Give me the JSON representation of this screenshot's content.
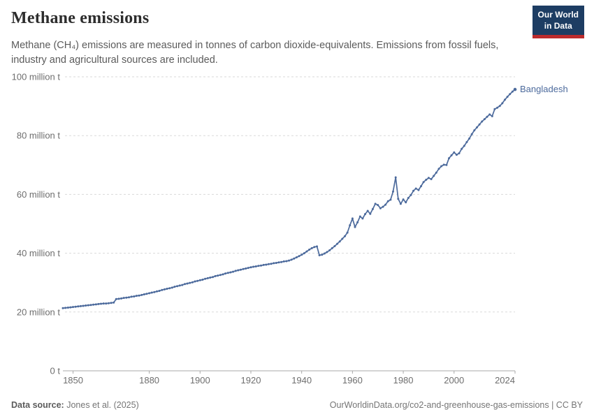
{
  "header": {
    "title": "Methane emissions",
    "subtitle": "Methane (CH₄) emissions are measured in tonnes of carbon dioxide-equivalents. Emissions from fossil fuels, industry and agricultural sources are included."
  },
  "logo": {
    "line1": "Our World",
    "line2": "in Data",
    "bg_color": "#1d3d63",
    "accent_color": "#bc2b2d"
  },
  "chart_data": {
    "type": "line",
    "title": "Methane emissions",
    "entity_label": "Bangladesh",
    "unit": "t",
    "line_color": "#4c6a9c",
    "grid": "horizontal-dashed",
    "legend_position": "end-of-line",
    "xlim": [
      1846,
      2024
    ],
    "ylim": [
      0,
      100
    ],
    "xticks": [
      1850,
      1880,
      1900,
      1920,
      1940,
      1960,
      1980,
      2000,
      2024
    ],
    "yticks": [
      {
        "value": 0,
        "label": "0 t"
      },
      {
        "value": 20,
        "label": "20 million t"
      },
      {
        "value": 40,
        "label": "40 million t"
      },
      {
        "value": 60,
        "label": "60 million t"
      },
      {
        "value": 80,
        "label": "80 million t"
      },
      {
        "value": 100,
        "label": "100 million t"
      }
    ],
    "years": [
      1846,
      1847,
      1848,
      1849,
      1850,
      1851,
      1852,
      1853,
      1854,
      1855,
      1856,
      1857,
      1858,
      1859,
      1860,
      1861,
      1862,
      1863,
      1864,
      1865,
      1866,
      1867,
      1868,
      1869,
      1870,
      1871,
      1872,
      1873,
      1874,
      1875,
      1876,
      1877,
      1878,
      1879,
      1880,
      1881,
      1882,
      1883,
      1884,
      1885,
      1886,
      1887,
      1888,
      1889,
      1890,
      1891,
      1892,
      1893,
      1894,
      1895,
      1896,
      1897,
      1898,
      1899,
      1900,
      1901,
      1902,
      1903,
      1904,
      1905,
      1906,
      1907,
      1908,
      1909,
      1910,
      1911,
      1912,
      1913,
      1914,
      1915,
      1916,
      1917,
      1918,
      1919,
      1920,
      1921,
      1922,
      1923,
      1924,
      1925,
      1926,
      1927,
      1928,
      1929,
      1930,
      1931,
      1932,
      1933,
      1934,
      1935,
      1936,
      1937,
      1938,
      1939,
      1940,
      1941,
      1942,
      1943,
      1944,
      1945,
      1946,
      1947,
      1948,
      1949,
      1950,
      1951,
      1952,
      1953,
      1954,
      1955,
      1956,
      1957,
      1958,
      1959,
      1960,
      1961,
      1962,
      1963,
      1964,
      1965,
      1966,
      1967,
      1968,
      1969,
      1970,
      1971,
      1972,
      1973,
      1974,
      1975,
      1976,
      1977,
      1978,
      1979,
      1980,
      1981,
      1982,
      1983,
      1984,
      1985,
      1986,
      1987,
      1988,
      1989,
      1990,
      1991,
      1992,
      1993,
      1994,
      1995,
      1996,
      1997,
      1998,
      1999,
      2000,
      2001,
      2002,
      2003,
      2004,
      2005,
      2006,
      2007,
      2008,
      2009,
      2010,
      2011,
      2012,
      2013,
      2014,
      2015,
      2016,
      2017,
      2018,
      2019,
      2020,
      2021,
      2022,
      2023,
      2024
    ],
    "series": [
      {
        "name": "Bangladesh",
        "values": [
          21.3,
          21.4,
          21.5,
          21.6,
          21.7,
          21.8,
          21.9,
          22.0,
          22.1,
          22.2,
          22.3,
          22.4,
          22.5,
          22.6,
          22.7,
          22.8,
          22.9,
          22.9,
          23.0,
          23.1,
          23.2,
          24.4,
          24.5,
          24.6,
          24.8,
          24.9,
          25.0,
          25.2,
          25.3,
          25.5,
          25.6,
          25.8,
          26.0,
          26.2,
          26.4,
          26.6,
          26.8,
          27.0,
          27.2,
          27.5,
          27.7,
          27.9,
          28.1,
          28.3,
          28.6,
          28.8,
          29.0,
          29.2,
          29.5,
          29.7,
          29.9,
          30.1,
          30.4,
          30.6,
          30.8,
          31.0,
          31.3,
          31.5,
          31.7,
          31.9,
          32.2,
          32.4,
          32.6,
          32.8,
          33.1,
          33.3,
          33.5,
          33.7,
          34.0,
          34.2,
          34.4,
          34.6,
          34.8,
          35.0,
          35.2,
          35.4,
          35.5,
          35.7,
          35.8,
          36.0,
          36.1,
          36.3,
          36.4,
          36.6,
          36.7,
          36.9,
          37.0,
          37.2,
          37.3,
          37.5,
          37.8,
          38.2,
          38.6,
          39.0,
          39.5,
          40.0,
          40.6,
          41.2,
          41.7,
          42.1,
          42.3,
          39.3,
          39.5,
          39.9,
          40.4,
          41.0,
          41.7,
          42.4,
          43.2,
          44.0,
          44.9,
          45.8,
          47.0,
          49.5,
          51.8,
          48.9,
          50.5,
          52.5,
          51.8,
          53.3,
          54.4,
          53.4,
          55.0,
          56.8,
          56.4,
          55.3,
          55.8,
          56.5,
          57.7,
          58.2,
          61.0,
          65.8,
          58.5,
          56.8,
          58.3,
          57.3,
          58.8,
          59.8,
          61.2,
          62.0,
          61.5,
          62.8,
          64.2,
          65.0,
          65.6,
          65.2,
          66.3,
          67.4,
          68.7,
          69.6,
          70.1,
          70.0,
          72.3,
          73.3,
          74.3,
          73.5,
          74.0,
          75.5,
          76.5,
          77.8,
          79.0,
          80.5,
          81.8,
          82.8,
          83.8,
          84.8,
          85.6,
          86.4,
          87.2,
          86.6,
          89.0,
          89.5,
          90.1,
          91.0,
          92.2,
          93.2,
          94.1,
          95.0,
          95.7
        ]
      }
    ]
  },
  "footer": {
    "source_label": "Data source:",
    "source_value": "Jones et al. (2025)",
    "attribution": "OurWorldinData.org/co2-and-greenhouse-gas-emissions | CC BY"
  }
}
